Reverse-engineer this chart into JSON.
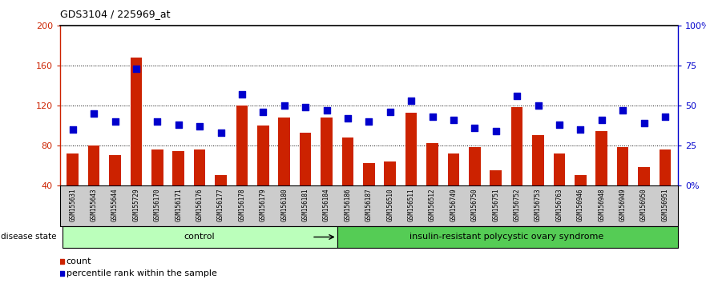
{
  "title": "GDS3104 / 225969_at",
  "samples": [
    "GSM155631",
    "GSM155643",
    "GSM155644",
    "GSM155729",
    "GSM156170",
    "GSM156171",
    "GSM156176",
    "GSM156177",
    "GSM156178",
    "GSM156179",
    "GSM156180",
    "GSM156181",
    "GSM156184",
    "GSM156186",
    "GSM156187",
    "GSM156510",
    "GSM156511",
    "GSM156512",
    "GSM156749",
    "GSM156750",
    "GSM156751",
    "GSM156752",
    "GSM156753",
    "GSM156763",
    "GSM156946",
    "GSM156948",
    "GSM156949",
    "GSM156950",
    "GSM156951"
  ],
  "counts": [
    72,
    80,
    70,
    168,
    76,
    74,
    76,
    50,
    120,
    100,
    108,
    93,
    108,
    88,
    62,
    64,
    113,
    82,
    72,
    78,
    55,
    118,
    90,
    72,
    50,
    94,
    78,
    58,
    76
  ],
  "percentile_ranks": [
    35,
    45,
    40,
    73,
    40,
    38,
    37,
    33,
    57,
    46,
    50,
    49,
    47,
    42,
    40,
    46,
    53,
    43,
    41,
    36,
    34,
    56,
    50,
    38,
    35,
    41,
    47,
    39,
    43
  ],
  "control_count": 13,
  "disease_label": "insulin-resistant polycystic ovary syndrome",
  "control_label": "control",
  "bar_color": "#cc2200",
  "dot_color": "#0000cc",
  "ylim_left": [
    40,
    200
  ],
  "ylim_right": [
    0,
    100
  ],
  "yticks_left": [
    40,
    80,
    120,
    160,
    200
  ],
  "ytick_labels_left": [
    "40",
    "80",
    "120",
    "160",
    "200"
  ],
  "yticks_right": [
    0,
    25,
    50,
    75,
    100
  ],
  "ytick_labels_right": [
    "0%",
    "25",
    "50",
    "75",
    "100%"
  ],
  "control_bg": "#bbffbb",
  "disease_bg": "#55cc55",
  "gray_bg": "#cccccc",
  "legend_count_label": "count",
  "legend_pct_label": "percentile rank within the sample"
}
